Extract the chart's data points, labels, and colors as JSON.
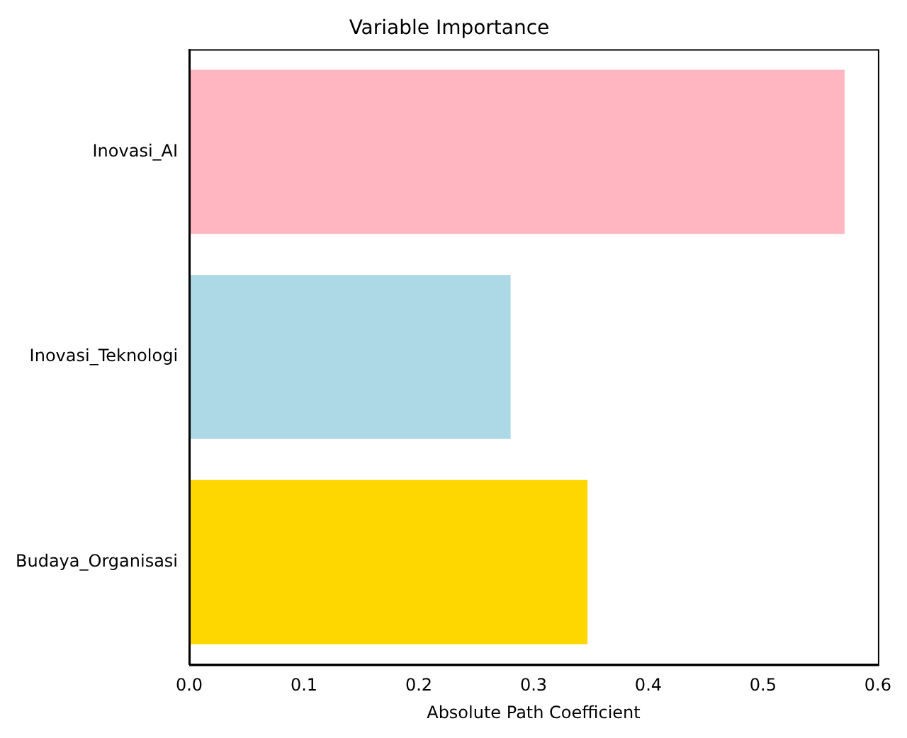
{
  "chart_data": {
    "type": "bar",
    "orientation": "horizontal",
    "title": "Variable Importance",
    "xlabel": "Absolute Path Coefficient",
    "categories": [
      "Inovasi_AI",
      "Inovasi_Teknologi",
      "Budaya_Organisasi"
    ],
    "values": [
      0.571,
      0.28,
      0.347
    ],
    "colors": [
      "#ffb6c1",
      "#add8e6",
      "#ffd700"
    ],
    "xlim": [
      0,
      0.6
    ],
    "xticks": [
      {
        "value": 0,
        "label": "0.0"
      },
      {
        "value": 0.1,
        "label": "0.1"
      },
      {
        "value": 0.2,
        "label": "0.2"
      },
      {
        "value": 0.3,
        "label": "0.3"
      },
      {
        "value": 0.4,
        "label": "0.4"
      },
      {
        "value": 0.5,
        "label": "0.5"
      },
      {
        "value": 0.6,
        "label": "0.6"
      }
    ],
    "grid": false,
    "legend": false
  }
}
